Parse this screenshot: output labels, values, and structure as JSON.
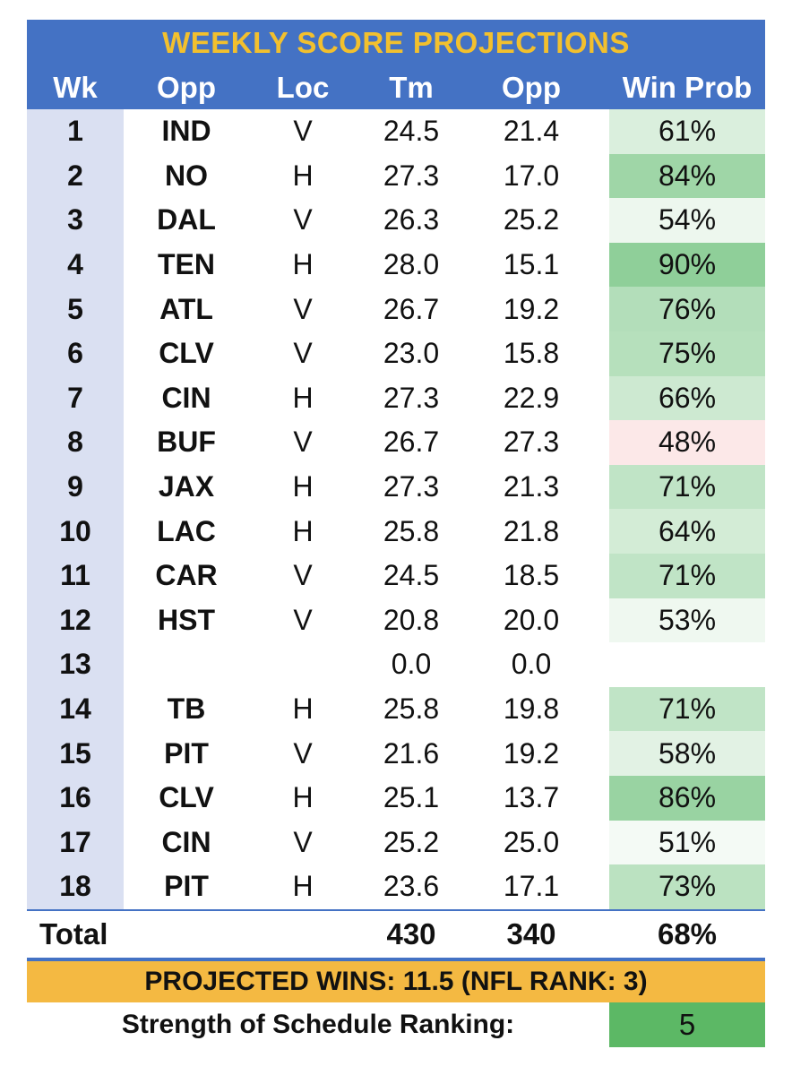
{
  "title": "WEEKLY SCORE PROJECTIONS",
  "headers": {
    "wk": "Wk",
    "opp": "Opp",
    "loc": "Loc",
    "tm": "Tm",
    "opp_score": "Opp",
    "win_prob": "Win Prob"
  },
  "rows": [
    {
      "wk": "1",
      "opp": "IND",
      "loc": "V",
      "tm": "24.5",
      "opp_score": "21.4",
      "win_prob": "61%",
      "wp_value": 0.61
    },
    {
      "wk": "2",
      "opp": "NO",
      "loc": "H",
      "tm": "27.3",
      "opp_score": "17.0",
      "win_prob": "84%",
      "wp_value": 0.84
    },
    {
      "wk": "3",
      "opp": "DAL",
      "loc": "V",
      "tm": "26.3",
      "opp_score": "25.2",
      "win_prob": "54%",
      "wp_value": 0.54
    },
    {
      "wk": "4",
      "opp": "TEN",
      "loc": "H",
      "tm": "28.0",
      "opp_score": "15.1",
      "win_prob": "90%",
      "wp_value": 0.9
    },
    {
      "wk": "5",
      "opp": "ATL",
      "loc": "V",
      "tm": "26.7",
      "opp_score": "19.2",
      "win_prob": "76%",
      "wp_value": 0.76
    },
    {
      "wk": "6",
      "opp": "CLV",
      "loc": "V",
      "tm": "23.0",
      "opp_score": "15.8",
      "win_prob": "75%",
      "wp_value": 0.75
    },
    {
      "wk": "7",
      "opp": "CIN",
      "loc": "H",
      "tm": "27.3",
      "opp_score": "22.9",
      "win_prob": "66%",
      "wp_value": 0.66
    },
    {
      "wk": "8",
      "opp": "BUF",
      "loc": "V",
      "tm": "26.7",
      "opp_score": "27.3",
      "win_prob": "48%",
      "wp_value": 0.48
    },
    {
      "wk": "9",
      "opp": "JAX",
      "loc": "H",
      "tm": "27.3",
      "opp_score": "21.3",
      "win_prob": "71%",
      "wp_value": 0.71
    },
    {
      "wk": "10",
      "opp": "LAC",
      "loc": "H",
      "tm": "25.8",
      "opp_score": "21.8",
      "win_prob": "64%",
      "wp_value": 0.64
    },
    {
      "wk": "11",
      "opp": "CAR",
      "loc": "V",
      "tm": "24.5",
      "opp_score": "18.5",
      "win_prob": "71%",
      "wp_value": 0.71
    },
    {
      "wk": "12",
      "opp": "HST",
      "loc": "V",
      "tm": "20.8",
      "opp_score": "20.0",
      "win_prob": "53%",
      "wp_value": 0.53
    },
    {
      "wk": "13",
      "opp": "",
      "loc": "",
      "tm": "0.0",
      "opp_score": "0.0",
      "win_prob": "",
      "wp_value": null
    },
    {
      "wk": "14",
      "opp": "TB",
      "loc": "H",
      "tm": "25.8",
      "opp_score": "19.8",
      "win_prob": "71%",
      "wp_value": 0.71
    },
    {
      "wk": "15",
      "opp": "PIT",
      "loc": "V",
      "tm": "21.6",
      "opp_score": "19.2",
      "win_prob": "58%",
      "wp_value": 0.58
    },
    {
      "wk": "16",
      "opp": "CLV",
      "loc": "H",
      "tm": "25.1",
      "opp_score": "13.7",
      "win_prob": "86%",
      "wp_value": 0.86
    },
    {
      "wk": "17",
      "opp": "CIN",
      "loc": "V",
      "tm": "25.2",
      "opp_score": "25.0",
      "win_prob": "51%",
      "wp_value": 0.51
    },
    {
      "wk": "18",
      "opp": "PIT",
      "loc": "H",
      "tm": "23.6",
      "opp_score": "17.1",
      "win_prob": "73%",
      "wp_value": 0.73
    }
  ],
  "totals": {
    "label": "Total",
    "tm": "430",
    "opp_score": "340",
    "win_prob": "68%"
  },
  "projected_wins": "PROJECTED WINS: 11.5 (NFL RANK: 3)",
  "sos": {
    "label": "Strength of Schedule Ranking:",
    "value": "5"
  },
  "colors": {
    "header_blue": "#4472c4",
    "title_gold": "#f2c02e",
    "week_col_bg": "#dae0f2",
    "projected_bar": "#f4b942",
    "sos_green": "#5cb865",
    "heat_high": "#8fcf99",
    "heat_low_red": "#fce8e8"
  }
}
